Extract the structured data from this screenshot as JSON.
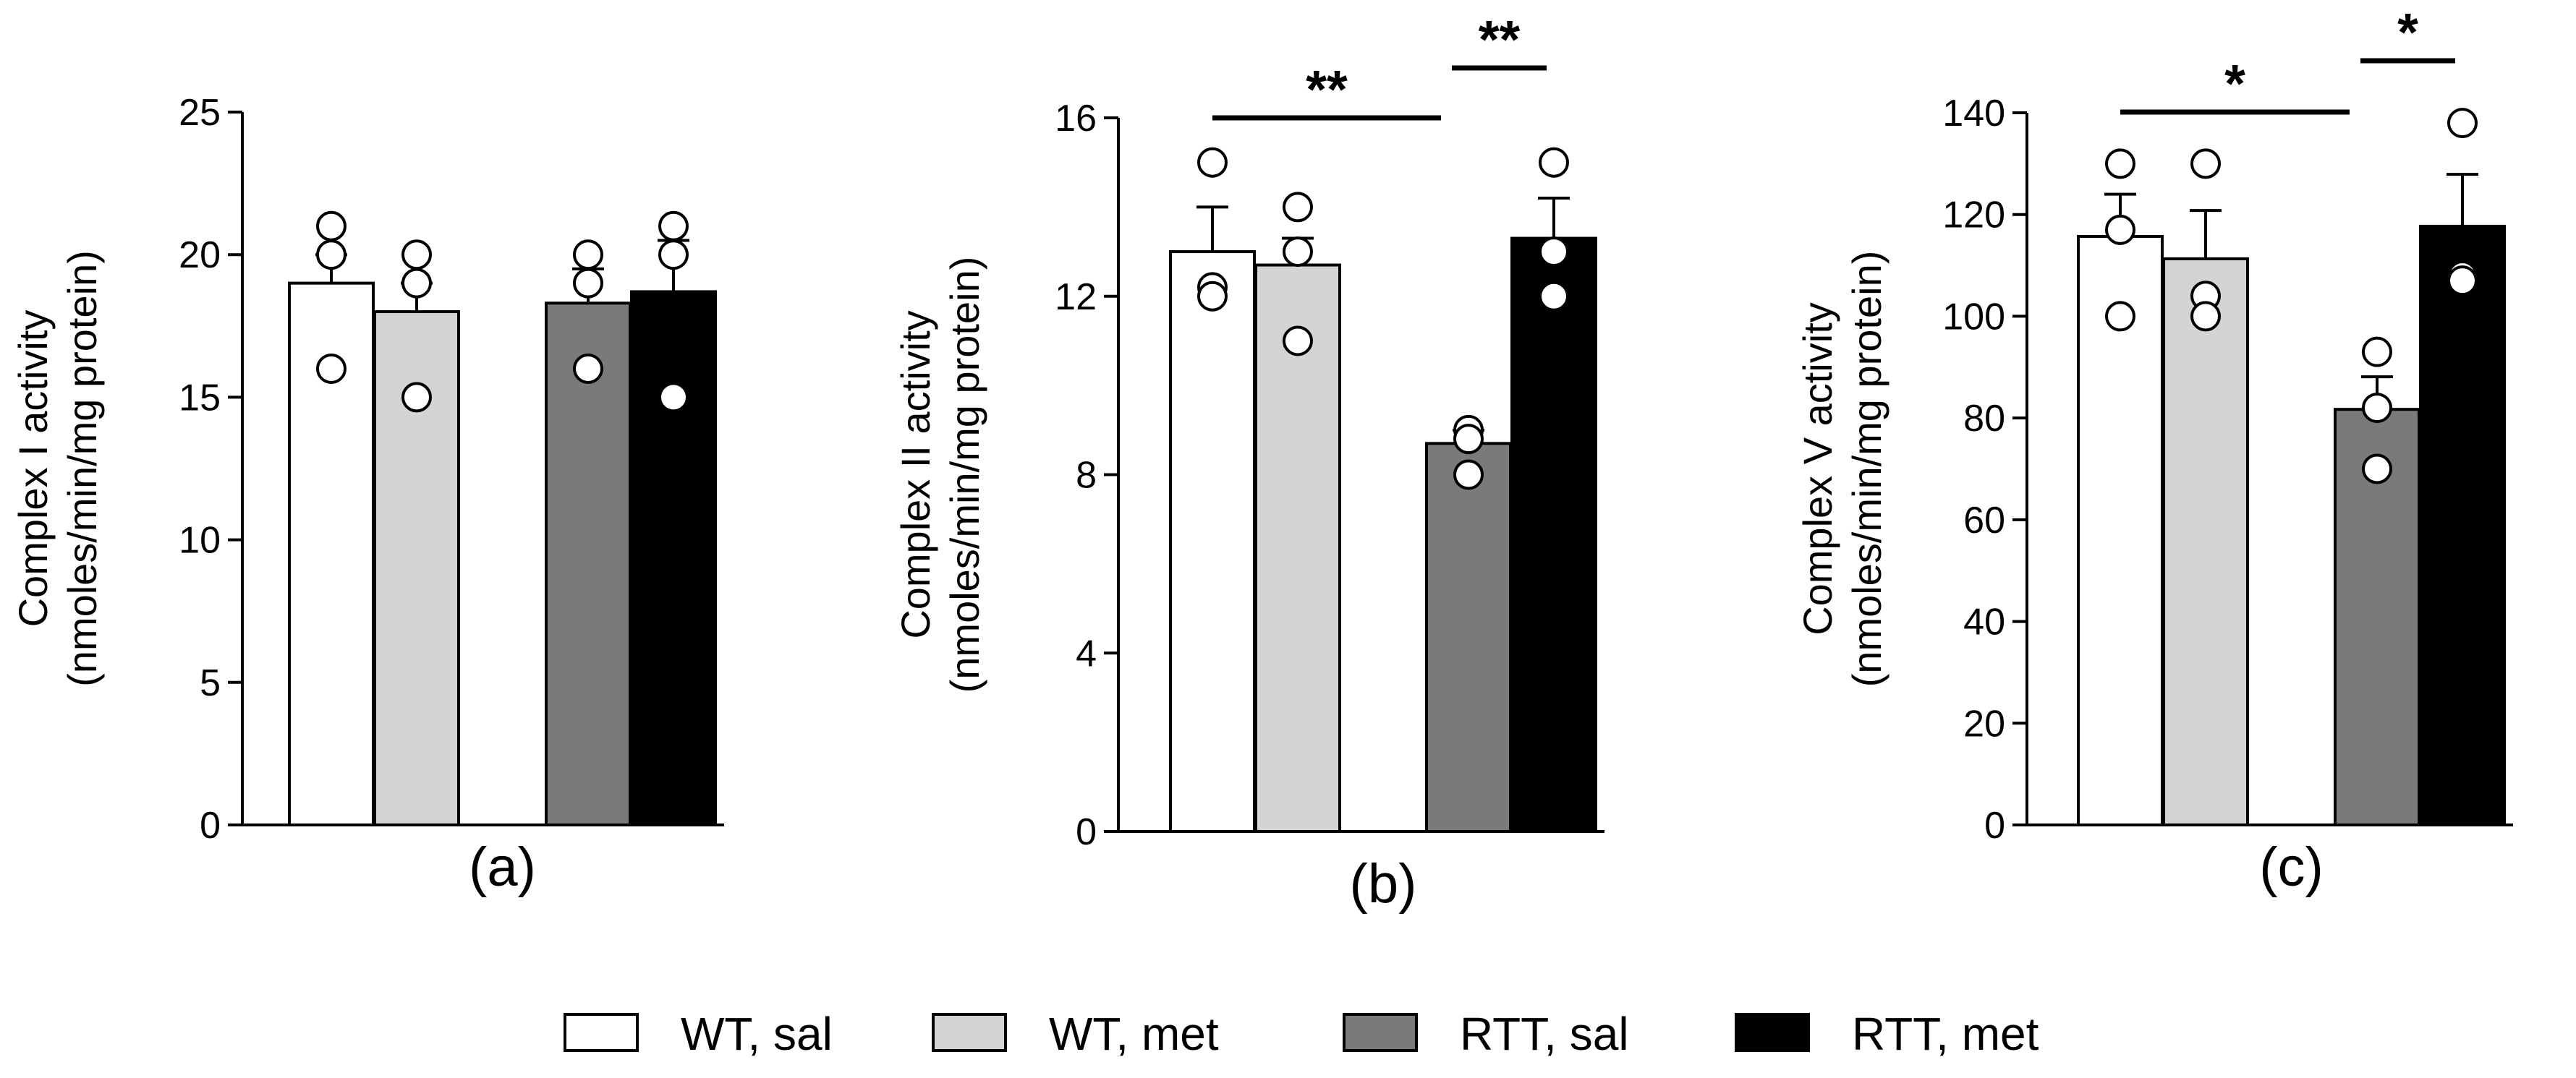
{
  "chart_data": [
    {
      "type": "bar",
      "panel_label": "(a)",
      "ylabel_line1": "Complex I activity",
      "ylabel_line2": "(nmoles/min/mg protein)",
      "ylim": [
        0,
        25
      ],
      "yticks": [
        0,
        5,
        10,
        15,
        20,
        25
      ],
      "groups": [
        {
          "name": "WT, sal",
          "mean": 19,
          "sem": 1,
          "points": [
            21,
            20,
            16
          ]
        },
        {
          "name": "WT, met",
          "mean": 18,
          "sem": 1,
          "points": [
            20,
            19,
            15
          ]
        },
        {
          "name": "RTT, sal",
          "mean": 18.3,
          "sem": 1.2,
          "points": [
            20,
            19,
            16
          ]
        },
        {
          "name": "RTT, met",
          "mean": 18.7,
          "sem": 1.8,
          "points": [
            21,
            20,
            15
          ]
        }
      ],
      "significance": []
    },
    {
      "type": "bar",
      "panel_label": "(b)",
      "ylabel_line1": "Complex II activity",
      "ylabel_line2": "(nmoles/min/mg protein)",
      "ylim": [
        0,
        16
      ],
      "yticks": [
        0,
        4,
        8,
        12,
        16
      ],
      "groups": [
        {
          "name": "WT, sal",
          "mean": 13,
          "sem": 1,
          "points": [
            15,
            12.2,
            12
          ]
        },
        {
          "name": "WT, met",
          "mean": 12.7,
          "sem": 0.6,
          "points": [
            14,
            13,
            11
          ]
        },
        {
          "name": "RTT, sal",
          "mean": 8.7,
          "sem": 0.3,
          "points": [
            9,
            8.8,
            8
          ]
        },
        {
          "name": "RTT, met",
          "mean": 13.3,
          "sem": 0.9,
          "points": [
            15,
            13,
            12
          ]
        }
      ],
      "significance": [
        {
          "from": 0,
          "to": 2,
          "label": "**"
        },
        {
          "from": 2,
          "to": 3,
          "label": "**"
        }
      ]
    },
    {
      "type": "bar",
      "panel_label": "(c)",
      "ylabel_line1": "Complex V activity",
      "ylabel_line2": "(nmoles/min/mg protein)",
      "ylim": [
        0,
        140
      ],
      "yticks": [
        0,
        20,
        40,
        60,
        80,
        100,
        120,
        140
      ],
      "groups": [
        {
          "name": "WT, sal",
          "mean": 115.7,
          "sem": 8.3,
          "points": [
            130,
            117,
            100
          ]
        },
        {
          "name": "WT, met",
          "mean": 111.3,
          "sem": 9.5,
          "points": [
            130,
            104,
            100
          ]
        },
        {
          "name": "RTT, sal",
          "mean": 81.7,
          "sem": 6.4,
          "points": [
            93,
            82,
            70
          ]
        },
        {
          "name": "RTT, met",
          "mean": 117.7,
          "sem": 10.2,
          "points": [
            138,
            108,
            107
          ]
        }
      ],
      "significance": [
        {
          "from": 0,
          "to": 2,
          "label": "*"
        },
        {
          "from": 2,
          "to": 3,
          "label": "*"
        }
      ]
    }
  ],
  "colors": {
    "WT, sal": "#ffffff",
    "WT, met": "#d4d4d4",
    "RTT, sal": "#7a7a7a",
    "RTT, met": "#000000"
  },
  "legend": [
    {
      "label": "WT, sal",
      "color": "#ffffff"
    },
    {
      "label": "WT, met",
      "color": "#d4d4d4"
    },
    {
      "label": "RTT, sal",
      "color": "#7a7a7a"
    },
    {
      "label": "RTT, met",
      "color": "#000000"
    }
  ]
}
